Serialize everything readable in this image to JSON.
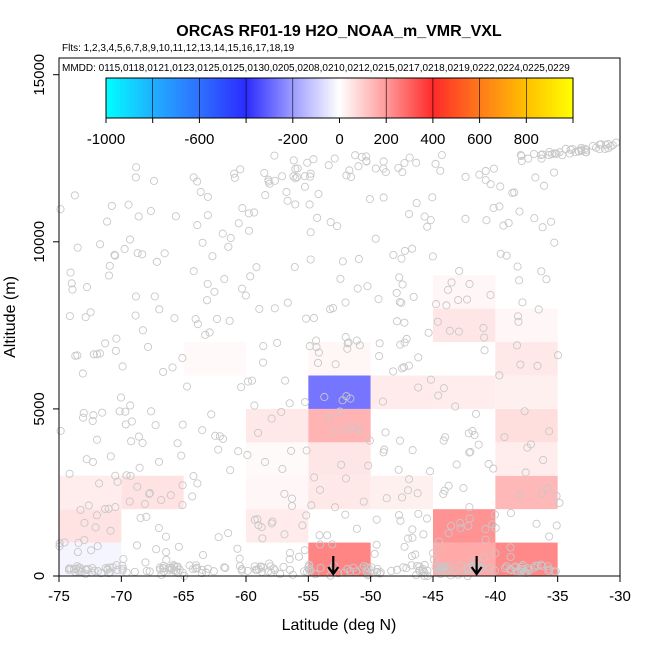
{
  "chart_data": {
    "type": "heatmap",
    "title": "ORCAS RF01-19 H2O_NOAA_m_VMR_VXL",
    "flights_text": "Flts: 1,2,3,4,5,6,7,8,9,10,11,12,13,14,15,16,17,18,19",
    "dates_text": "MMDD: 0115,0118,0121,0123,0125,0125,0130,0205,0208,0210,0212,0215,0217,0218,0219,0222,0224,0225,0229",
    "xlabel": "Latitude (deg N)",
    "ylabel": "Altitude (m)",
    "xlim": [
      -75,
      -30
    ],
    "ylim": [
      0,
      15500
    ],
    "x_ticks": [
      -75,
      -70,
      -65,
      -60,
      -55,
      -50,
      -45,
      -40,
      -35,
      -30
    ],
    "y_ticks": [
      0,
      5000,
      10000,
      15000
    ],
    "colorbar": {
      "range": [
        -1000,
        1000
      ],
      "tick_values": [
        -1000,
        -600,
        -200,
        0,
        200,
        400,
        600,
        800
      ],
      "tick_labels": [
        "-1000",
        "-600",
        "-200",
        "0",
        "200",
        "400",
        "600",
        "800"
      ],
      "stops": [
        {
          "v": -1000,
          "c": "#00ffff"
        },
        {
          "v": -800,
          "c": "#1fb0ff"
        },
        {
          "v": -600,
          "c": "#2f70ff"
        },
        {
          "v": -400,
          "c": "#2b2bff"
        },
        {
          "v": -200,
          "c": "#9d9dff"
        },
        {
          "v": 0,
          "c": "#ffffff"
        },
        {
          "v": 200,
          "c": "#ff9a9a"
        },
        {
          "v": 400,
          "c": "#ff2a2a"
        },
        {
          "v": 600,
          "c": "#ff7a1a"
        },
        {
          "v": 800,
          "c": "#ffc000"
        },
        {
          "v": 1000,
          "c": "#ffff00"
        }
      ]
    },
    "cells": [
      {
        "lat": [
          -75,
          -70
        ],
        "alt": [
          0,
          1000
        ],
        "value": -20
      },
      {
        "lat": [
          -75,
          -70
        ],
        "alt": [
          1000,
          2000
        ],
        "value": 55
      },
      {
        "lat": [
          -75,
          -70
        ],
        "alt": [
          2000,
          3000
        ],
        "value": 35
      },
      {
        "lat": [
          -70,
          -65
        ],
        "alt": [
          2000,
          3000
        ],
        "value": 55
      },
      {
        "lat": [
          -65,
          -60
        ],
        "alt": [
          6000,
          7000
        ],
        "value": 12
      },
      {
        "lat": [
          -60,
          -55
        ],
        "alt": [
          1000,
          2000
        ],
        "value": 40
      },
      {
        "lat": [
          -60,
          -55
        ],
        "alt": [
          2000,
          3000
        ],
        "value": 15
      },
      {
        "lat": [
          -60,
          -55
        ],
        "alt": [
          3000,
          4000
        ],
        "value": 10
      },
      {
        "lat": [
          -60,
          -55
        ],
        "alt": [
          4000,
          5000
        ],
        "value": 45
      },
      {
        "lat": [
          -55,
          -50
        ],
        "alt": [
          0,
          1000
        ],
        "value": 240
      },
      {
        "lat": [
          -55,
          -50
        ],
        "alt": [
          2000,
          3000
        ],
        "value": 45
      },
      {
        "lat": [
          -55,
          -50
        ],
        "alt": [
          3000,
          4000
        ],
        "value": 50
      },
      {
        "lat": [
          -55,
          -50
        ],
        "alt": [
          4000,
          5000
        ],
        "value": 150
      },
      {
        "lat": [
          -55,
          -50
        ],
        "alt": [
          5000,
          6000
        ],
        "value": -270
      },
      {
        "lat": [
          -55,
          -50
        ],
        "alt": [
          6000,
          7000
        ],
        "value": 18
      },
      {
        "lat": [
          -50,
          -45
        ],
        "alt": [
          2000,
          3000
        ],
        "value": 30
      },
      {
        "lat": [
          -50,
          -45
        ],
        "alt": [
          5000,
          6000
        ],
        "value": 40
      },
      {
        "lat": [
          -45,
          -40
        ],
        "alt": [
          0,
          1000
        ],
        "value": 170
      },
      {
        "lat": [
          -45,
          -40
        ],
        "alt": [
          1000,
          2000
        ],
        "value": 215
      },
      {
        "lat": [
          -45,
          -40
        ],
        "alt": [
          5000,
          6000
        ],
        "value": 35
      },
      {
        "lat": [
          -45,
          -40
        ],
        "alt": [
          7000,
          8000
        ],
        "value": 50
      },
      {
        "lat": [
          -45,
          -40
        ],
        "alt": [
          8000,
          9000
        ],
        "value": 15
      },
      {
        "lat": [
          -40,
          -35
        ],
        "alt": [
          0,
          1000
        ],
        "value": 230
      },
      {
        "lat": [
          -40,
          -35
        ],
        "alt": [
          2000,
          3000
        ],
        "value": 140
      },
      {
        "lat": [
          -40,
          -35
        ],
        "alt": [
          3000,
          4000
        ],
        "value": 35
      },
      {
        "lat": [
          -40,
          -35
        ],
        "alt": [
          4000,
          5000
        ],
        "value": 65
      },
      {
        "lat": [
          -40,
          -35
        ],
        "alt": [
          5000,
          6000
        ],
        "value": 30
      },
      {
        "lat": [
          -40,
          -35
        ],
        "alt": [
          6000,
          7000
        ],
        "value": 45
      },
      {
        "lat": [
          -40,
          -35
        ],
        "alt": [
          7000,
          8000
        ],
        "value": 15
      }
    ],
    "arrows_lat": [
      -53,
      -41.5
    ],
    "scatter_seed": 7,
    "scatter_count": 720
  }
}
